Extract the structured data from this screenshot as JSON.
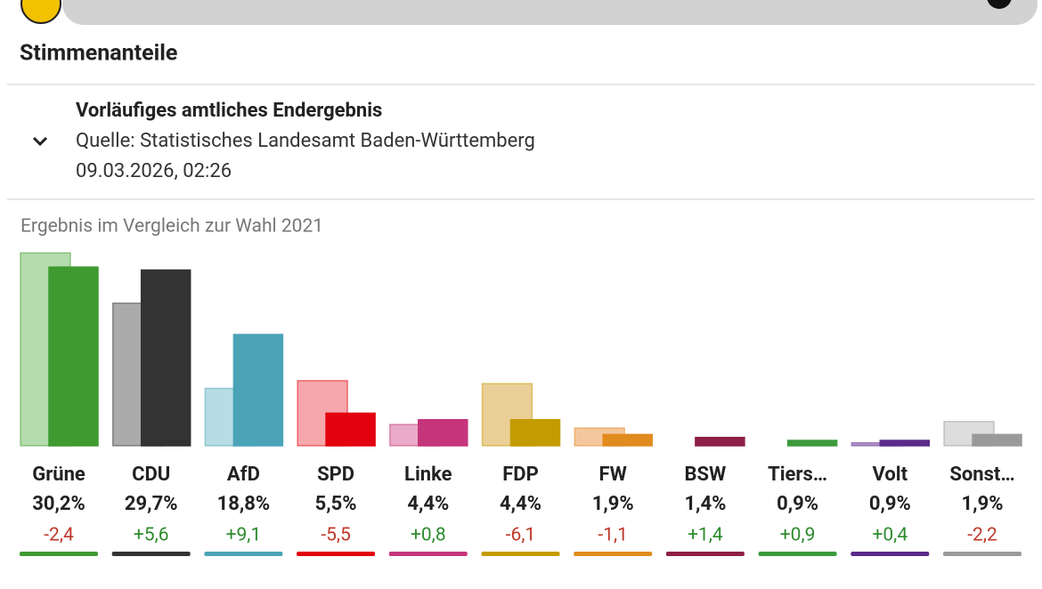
{
  "header": {
    "title": "Stimmenanteile"
  },
  "status": {
    "title": "Vorläufiges amtliches Endergebnis",
    "source": "Quelle: Statistisches Landesamt Baden-Württemberg",
    "timestamp": "09.03.2026, 02:26"
  },
  "chart_data": {
    "type": "bar",
    "title": "Ergebnis im Vergleich zur Wahl 2021",
    "categories": [
      "Grüne",
      "CDU",
      "AfD",
      "SPD",
      "Linke",
      "FDP",
      "FW",
      "BSW",
      "Tiers…",
      "Volt",
      "Sonst…"
    ],
    "series": [
      {
        "colors": [
          "#b5dcac",
          "#ababab",
          "#b7dde4",
          "#f5a7ab",
          "#e9abc9",
          "#eacf97",
          "#f5c79f",
          "#c98597",
          "#a8d4a8",
          "#b59bcb",
          "#dddddd"
        ],
        "values": [
          32.6,
          24.1,
          9.7,
          11.0,
          3.6,
          10.5,
          3.0,
          0,
          0,
          0.5,
          4.1
        ]
      },
      {
        "colors": [
          "#3f9a30",
          "#333333",
          "#4aa3b6",
          "#e3000f",
          "#c5357b",
          "#c49b00",
          "#e08b1e",
          "#8e1f47",
          "#3d9a3d",
          "#5b2a8b",
          "#9a9a9a"
        ],
        "values": [
          30.2,
          29.7,
          18.8,
          5.5,
          4.4,
          4.4,
          1.9,
          1.4,
          0.9,
          0.9,
          1.9
        ],
        "value_labels": [
          "30,2%",
          "29,7%",
          "18,8%",
          "5,5%",
          "4,4%",
          "4,4%",
          "1,9%",
          "1,4%",
          "0,9%",
          "0,9%",
          "1,9%"
        ]
      }
    ],
    "changes": {
      "values": [
        -2.4,
        5.6,
        9.1,
        -5.5,
        0.8,
        -6.1,
        -1.1,
        1.4,
        0.9,
        0.4,
        -2.2
      ],
      "value_labels": [
        "-2,4",
        "+5,6",
        "+9,1",
        "-5,5",
        "+0,8",
        "-6,1",
        "-1,1",
        "+1,4",
        "+0,9",
        "+0,4",
        "-2,2"
      ]
    }
  }
}
